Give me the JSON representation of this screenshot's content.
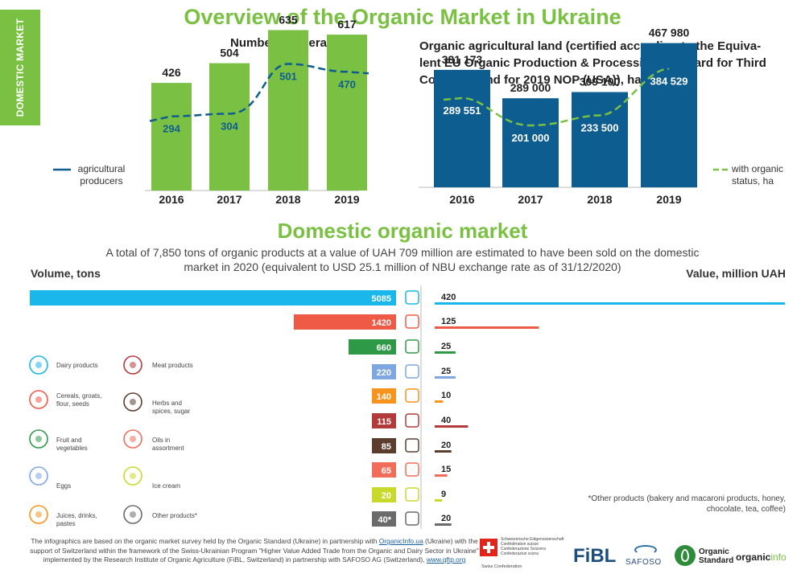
{
  "side_tab": "DOMESTIC MARKET",
  "title": "Overview of the Organic Market in Ukraine",
  "section_title": "Domestic organic market",
  "summary": "A total of 7,850 tons of organic products at a value of UAH 709 million are estimated to have been sold on the domestic market in 2020 (equivalent to USD 25.1 million of NBU exchange rate as of 31/12/2020)",
  "volume_label": "Volume, tons",
  "value_label": "Value, million UAH",
  "note": "*Other products (bakery and macaroni products, honey, chocolate, tea, coffee)",
  "footer": {
    "text1": "The infographics are based on the organic market survey held by the Organic Standard (Ukraine) in partnership with ",
    "link1": "OrganicInfo.ua",
    "text2": " (Ukraine) with the support of Switzerland within the framework of the Swiss-Ukrainian Program \"Higher Value Added Trade  from the Organic and Dairy Sector in Ukraine\" implemented by the Research Institute of Organic Agriculture (FiBL, Switzerland)  in partnership with SAFOSO AG (Switzerland), ",
    "link2": "www.qftp.org"
  },
  "logos": {
    "swiss_lines": [
      "Schweizerische Eidgenossenschaft",
      "Confédération suisse",
      "Confederazione Svizzera",
      "Confederaziun svizra"
    ],
    "swiss_sub": "Swiss Confederation",
    "fibl": "FiBL",
    "safoso": "SAFOSO",
    "os1": "Organic",
    "os2": "Standard",
    "oi1": "organic",
    "oi2": "info"
  },
  "colors": {
    "green": "#7ac143",
    "blue": "#0e5d91",
    "light_blue": "#1ab7ea"
  },
  "chart_data": [
    {
      "type": "bar",
      "title": "Number of operators",
      "categories": [
        "2016",
        "2017",
        "2018",
        "2019"
      ],
      "series": [
        {
          "name": "",
          "values": [
            426,
            504,
            635,
            617
          ]
        },
        {
          "name": "agricultural producers",
          "values": [
            294,
            304,
            501,
            470
          ]
        }
      ]
    },
    {
      "type": "bar",
      "title": "Organic agricultural land (certified according to the Equiva-lent EU Organic Production & Processing Standard for Third Countries and for 2019 NOP (USA)), ha",
      "title_lines": [
        "Organic agricultural land (certified according to the Equiva-",
        "lent EU Organic Production & Processing Standard for Third",
        "Countries and for 2019 NOP (USA)), ha"
      ],
      "categories": [
        "2016",
        "2017",
        "2018",
        "2019"
      ],
      "series": [
        {
          "name": "",
          "values": [
            381173,
            289000,
            309100,
            467980
          ],
          "labels": [
            "381 173",
            "289 000",
            "309 100",
            "467 980"
          ]
        },
        {
          "name": "with organic status, ha",
          "values": [
            289551,
            201000,
            233500,
            384529
          ],
          "labels": [
            "289 551",
            "201 000",
            "233 500",
            "384 529"
          ]
        }
      ]
    },
    {
      "type": "bar",
      "orientation": "horizontal",
      "title": "Domestic organic market",
      "categories": [
        "Dairy products",
        "Cereals, groats, flour, seeds",
        "Fruit and vegetables",
        "Eggs",
        "Juices, drinks, pastes",
        "Meat products",
        "Herbs and spices, sugar",
        "Oils in assortment",
        "Ice cream",
        "Other products*"
      ],
      "rows": [
        {
          "category": "Dairy products",
          "volume": 5085,
          "value": 420,
          "color": "#1ab7ea",
          "icon": "dairy-icon"
        },
        {
          "category": "Cereals, groats, flour, seeds",
          "volume": 1420,
          "value": 125,
          "color": "#ef5a46",
          "icon": "cereals-icon"
        },
        {
          "category": "Fruit and vegetables",
          "volume": 660,
          "value": 25,
          "color": "#2e9a47",
          "icon": "fruit-vegetables-icon"
        },
        {
          "category": "Eggs",
          "volume": 220,
          "value": 25,
          "color": "#7ea6e0",
          "icon": "eggs-icon"
        },
        {
          "category": "Juices, drinks, pastes",
          "volume": 140,
          "value": 10,
          "color": "#f7941d",
          "icon": "juices-icon"
        },
        {
          "category": "Meat products",
          "volume": 115,
          "value": 40,
          "color": "#b23a3a",
          "icon": "meat-icon"
        },
        {
          "category": "Herbs and spices, sugar",
          "volume": 85,
          "value": 20,
          "color": "#5c3d2e",
          "icon": "herbs-icon"
        },
        {
          "category": "Oils in assortment",
          "volume": 65,
          "value": 15,
          "color": "#f26c5a",
          "icon": "oils-icon"
        },
        {
          "category": "Ice cream",
          "volume": 20,
          "value": 9,
          "color": "#c9d92c",
          "icon": "ice-cream-icon"
        },
        {
          "category": "Other products*",
          "volume": 40,
          "value": 20,
          "color": "#6b6b6b",
          "icon": "other-products-icon"
        }
      ],
      "volume_labels": [
        "5085",
        "1420",
        "660",
        "220",
        "140",
        "115",
        "85",
        "65",
        "20",
        "40*"
      ],
      "value_labels": [
        "420",
        "125",
        "25",
        "25",
        "10",
        "40",
        "20",
        "15",
        "9",
        "20"
      ]
    }
  ]
}
